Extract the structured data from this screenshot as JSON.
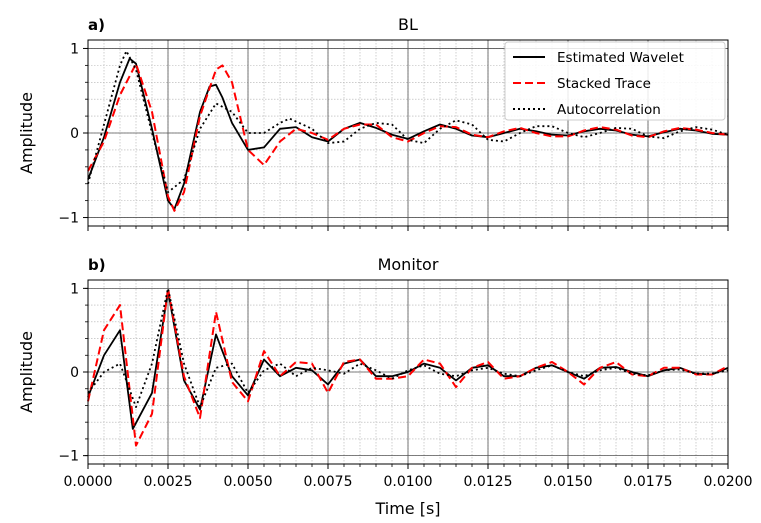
{
  "chart_data": [
    {
      "type": "line",
      "panel_label": "a)",
      "title": "BL",
      "ylabel": "Amplitude",
      "xlabel": "",
      "xlim": [
        0.0,
        0.02
      ],
      "ylim": [
        -1.1,
        1.1
      ],
      "yticks": [
        "1",
        "0",
        "−1"
      ],
      "ytick_values": [
        1,
        0,
        -1
      ],
      "grid": true,
      "legend": {
        "position": "top-right",
        "entries": [
          "Estimated Wavelet",
          "Stacked Trace",
          "Autocorrelation"
        ]
      },
      "series": [
        {
          "name": "Estimated Wavelet",
          "color": "#000000",
          "style": "solid",
          "x": [
            0.0,
            0.0005,
            0.001,
            0.0013,
            0.0015,
            0.002,
            0.0025,
            0.0027,
            0.003,
            0.0035,
            0.0038,
            0.004,
            0.0042,
            0.0045,
            0.005,
            0.0055,
            0.006,
            0.0065,
            0.007,
            0.0075,
            0.008,
            0.0085,
            0.009,
            0.0095,
            0.01,
            0.0105,
            0.011,
            0.0115,
            0.012,
            0.0125,
            0.013,
            0.0135,
            0.014,
            0.0145,
            0.015,
            0.0155,
            0.016,
            0.0165,
            0.017,
            0.0175,
            0.018,
            0.0185,
            0.019,
            0.0195,
            0.02
          ],
          "y": [
            -0.55,
            -0.05,
            0.6,
            0.88,
            0.82,
            0.05,
            -0.8,
            -0.9,
            -0.6,
            0.25,
            0.55,
            0.57,
            0.42,
            0.12,
            -0.2,
            -0.17,
            0.05,
            0.07,
            -0.05,
            -0.1,
            0.05,
            0.12,
            0.06,
            -0.02,
            -0.07,
            0.02,
            0.1,
            0.05,
            -0.03,
            -0.05,
            0.0,
            0.05,
            0.02,
            -0.02,
            -0.03,
            0.02,
            0.05,
            0.03,
            -0.02,
            -0.04,
            0.01,
            0.05,
            0.03,
            -0.01,
            -0.02
          ]
        },
        {
          "name": "Stacked Trace",
          "color": "#ff0000",
          "style": "dashed",
          "x": [
            0.0,
            0.0005,
            0.001,
            0.0015,
            0.002,
            0.0025,
            0.0027,
            0.003,
            0.0035,
            0.004,
            0.0042,
            0.0045,
            0.005,
            0.0055,
            0.006,
            0.0065,
            0.007,
            0.0075,
            0.008,
            0.0085,
            0.009,
            0.0095,
            0.01,
            0.0105,
            0.011,
            0.0115,
            0.012,
            0.0125,
            0.013,
            0.0135,
            0.014,
            0.0145,
            0.015,
            0.0155,
            0.016,
            0.0165,
            0.017,
            0.0175,
            0.018,
            0.0185,
            0.019,
            0.0195,
            0.02
          ],
          "y": [
            -0.45,
            -0.1,
            0.45,
            0.82,
            0.25,
            -0.75,
            -0.92,
            -0.7,
            0.2,
            0.75,
            0.8,
            0.6,
            -0.2,
            -0.38,
            -0.1,
            0.05,
            0.0,
            -0.08,
            0.05,
            0.1,
            0.1,
            -0.05,
            -0.1,
            0.0,
            0.08,
            0.07,
            -0.02,
            -0.05,
            0.02,
            0.06,
            0.0,
            -0.04,
            -0.04,
            0.03,
            0.07,
            0.04,
            -0.03,
            -0.05,
            0.02,
            0.06,
            0.04,
            0.0,
            -0.02
          ]
        },
        {
          "name": "Autocorrelation",
          "color": "#000000",
          "style": "dotted",
          "x": [
            0.0,
            0.0005,
            0.001,
            0.0012,
            0.0015,
            0.002,
            0.0025,
            0.003,
            0.0035,
            0.004,
            0.0045,
            0.005,
            0.0055,
            0.006,
            0.0063,
            0.007,
            0.0075,
            0.008,
            0.0085,
            0.009,
            0.0095,
            0.01,
            0.0105,
            0.011,
            0.0115,
            0.012,
            0.0125,
            0.013,
            0.0135,
            0.014,
            0.0145,
            0.015,
            0.0155,
            0.016,
            0.0165,
            0.017,
            0.0175,
            0.018,
            0.0185,
            0.019,
            0.0195,
            0.02
          ],
          "y": [
            -0.6,
            0.1,
            0.8,
            0.97,
            0.75,
            0.0,
            -0.7,
            -0.55,
            0.05,
            0.35,
            0.25,
            0.0,
            0.0,
            0.12,
            0.17,
            0.05,
            -0.12,
            -0.1,
            0.05,
            0.12,
            0.1,
            -0.08,
            -0.12,
            0.05,
            0.15,
            0.1,
            -0.08,
            -0.1,
            0.0,
            0.08,
            0.08,
            0.0,
            -0.05,
            0.0,
            0.06,
            0.05,
            -0.04,
            -0.06,
            0.02,
            0.07,
            0.04,
            -0.02
          ]
        }
      ]
    },
    {
      "type": "line",
      "panel_label": "b)",
      "title": "Monitor",
      "ylabel": "Amplitude",
      "xlabel": "Time [s]",
      "xlim": [
        0.0,
        0.02
      ],
      "ylim": [
        -1.1,
        1.1
      ],
      "yticks": [
        "1",
        "0",
        "−1"
      ],
      "ytick_values": [
        1,
        0,
        -1
      ],
      "xticks": [
        "0.0000",
        "0.0025",
        "0.0050",
        "0.0075",
        "0.0100",
        "0.0125",
        "0.0150",
        "0.0175",
        "0.0200"
      ],
      "xtick_values": [
        0.0,
        0.0025,
        0.005,
        0.0075,
        0.01,
        0.0125,
        0.015,
        0.0175,
        0.02
      ],
      "grid": true,
      "series": [
        {
          "name": "Estimated Wavelet",
          "color": "#000000",
          "style": "solid",
          "x": [
            0.0,
            0.0005,
            0.001,
            0.0014,
            0.002,
            0.0025,
            0.003,
            0.0035,
            0.004,
            0.0045,
            0.005,
            0.0055,
            0.006,
            0.0065,
            0.007,
            0.0075,
            0.008,
            0.0085,
            0.009,
            0.0095,
            0.01,
            0.0105,
            0.011,
            0.0115,
            0.012,
            0.0125,
            0.013,
            0.0135,
            0.014,
            0.0145,
            0.015,
            0.0155,
            0.016,
            0.0165,
            0.017,
            0.0175,
            0.018,
            0.0185,
            0.019,
            0.0195,
            0.02
          ],
          "y": [
            -0.3,
            0.2,
            0.5,
            -0.68,
            -0.25,
            0.97,
            -0.1,
            -0.45,
            0.45,
            -0.05,
            -0.28,
            0.15,
            -0.05,
            0.05,
            0.02,
            -0.15,
            0.1,
            0.15,
            -0.05,
            -0.05,
            0.0,
            0.1,
            0.05,
            -0.1,
            0.05,
            0.08,
            -0.05,
            -0.05,
            0.05,
            0.08,
            0.0,
            -0.08,
            0.05,
            0.06,
            0.0,
            -0.05,
            0.02,
            0.05,
            -0.02,
            -0.03,
            0.05
          ]
        },
        {
          "name": "Stacked Trace",
          "color": "#ff0000",
          "style": "dashed",
          "x": [
            0.0,
            0.0005,
            0.001,
            0.0015,
            0.002,
            0.0025,
            0.003,
            0.0035,
            0.004,
            0.0045,
            0.005,
            0.0055,
            0.006,
            0.0065,
            0.007,
            0.0075,
            0.008,
            0.0085,
            0.009,
            0.0095,
            0.01,
            0.0105,
            0.011,
            0.0115,
            0.012,
            0.0125,
            0.013,
            0.0135,
            0.014,
            0.0145,
            0.015,
            0.0155,
            0.016,
            0.0165,
            0.017,
            0.0175,
            0.018,
            0.0185,
            0.019,
            0.0195,
            0.02
          ],
          "y": [
            -0.35,
            0.5,
            0.8,
            -0.88,
            -0.5,
            1.0,
            -0.05,
            -0.55,
            0.72,
            -0.12,
            -0.35,
            0.25,
            -0.05,
            0.12,
            0.1,
            -0.25,
            0.12,
            0.15,
            -0.08,
            -0.08,
            -0.05,
            0.15,
            0.1,
            -0.18,
            0.05,
            0.12,
            -0.08,
            -0.05,
            0.05,
            0.12,
            0.0,
            -0.15,
            0.05,
            0.12,
            -0.03,
            -0.05,
            0.05,
            0.05,
            -0.03,
            -0.03,
            0.07
          ]
        },
        {
          "name": "Autocorrelation",
          "color": "#000000",
          "style": "dotted",
          "x": [
            0.0,
            0.0005,
            0.001,
            0.0015,
            0.002,
            0.0025,
            0.003,
            0.0035,
            0.004,
            0.0045,
            0.005,
            0.0055,
            0.006,
            0.0065,
            0.007,
            0.0075,
            0.008,
            0.0085,
            0.009,
            0.0095,
            0.01,
            0.0105,
            0.011,
            0.0115,
            0.012,
            0.0125,
            0.013,
            0.0135,
            0.014,
            0.0145,
            0.015,
            0.0155,
            0.016,
            0.0165,
            0.017,
            0.0175,
            0.018,
            0.0185,
            0.019,
            0.0195,
            0.02
          ],
          "y": [
            -0.25,
            0.0,
            0.1,
            -0.42,
            0.1,
            1.0,
            0.1,
            -0.42,
            0.05,
            0.1,
            -0.25,
            0.02,
            0.1,
            -0.05,
            0.05,
            0.02,
            -0.02,
            0.1,
            0.02,
            -0.08,
            0.02,
            0.08,
            -0.02,
            -0.05,
            0.02,
            0.05,
            -0.02,
            -0.05,
            0.02,
            0.08,
            0.0,
            -0.05,
            0.02,
            0.05,
            -0.02,
            -0.04,
            0.02,
            0.03,
            -0.02,
            -0.02,
            0.02
          ]
        }
      ]
    }
  ]
}
